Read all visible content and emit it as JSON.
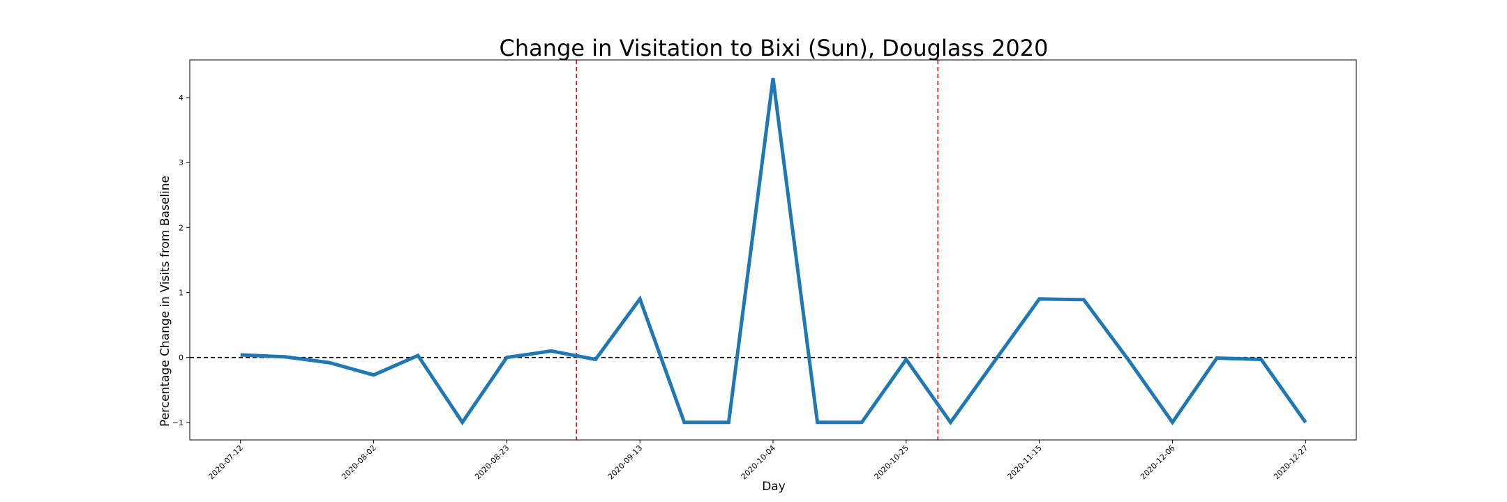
{
  "chart_data": {
    "type": "line",
    "title": "Change in Visitation to Bixi (Sun), Douglass 2020",
    "xlabel": "Day",
    "ylabel": "Percentage Change in Visits from Baseline",
    "x": [
      "2020-07-12",
      "2020-07-19",
      "2020-07-26",
      "2020-08-02",
      "2020-08-09",
      "2020-08-16",
      "2020-08-23",
      "2020-08-30",
      "2020-09-06",
      "2020-09-13",
      "2020-09-20",
      "2020-09-27",
      "2020-10-04",
      "2020-10-11",
      "2020-10-18",
      "2020-10-25",
      "2020-11-01",
      "2020-11-08",
      "2020-11-15",
      "2020-11-22",
      "2020-11-29",
      "2020-12-06",
      "2020-12-13",
      "2020-12-20",
      "2020-12-27"
    ],
    "series": [
      {
        "color": "#1f77b4",
        "values": [
          0.04,
          0.01,
          -0.08,
          -0.27,
          0.03,
          -1.0,
          0.0,
          0.1,
          -0.03,
          0.9,
          -1.0,
          -1.0,
          4.3,
          -1.0,
          -1.0,
          -0.03,
          -1.0,
          -0.05,
          0.9,
          0.89,
          -0.03,
          -1.0,
          -0.01,
          -0.03,
          -1.0
        ]
      }
    ],
    "xticks": [
      "2020-07-12",
      "2020-08-02",
      "2020-08-23",
      "2020-09-13",
      "2020-10-04",
      "2020-10-25",
      "2020-11-15",
      "2020-12-06",
      "2020-12-27"
    ],
    "yticks": [
      "-1",
      "0",
      "1",
      "2",
      "3",
      "4"
    ],
    "ytick_values": [
      -1,
      0,
      1,
      2,
      3,
      4
    ],
    "ylim": [
      -1.27,
      4.58
    ],
    "xlim": [
      "2020-07-04",
      "2021-01-04"
    ],
    "hlines": [
      {
        "y": 0,
        "color": "#000000",
        "style": "dashed"
      }
    ],
    "vlines": [
      {
        "x": "2020-09-03",
        "color": "#ff0000",
        "style": "dashed"
      },
      {
        "x": "2020-10-30",
        "color": "#ff0000",
        "style": "dashed"
      }
    ],
    "grid": false,
    "legend": "none"
  }
}
